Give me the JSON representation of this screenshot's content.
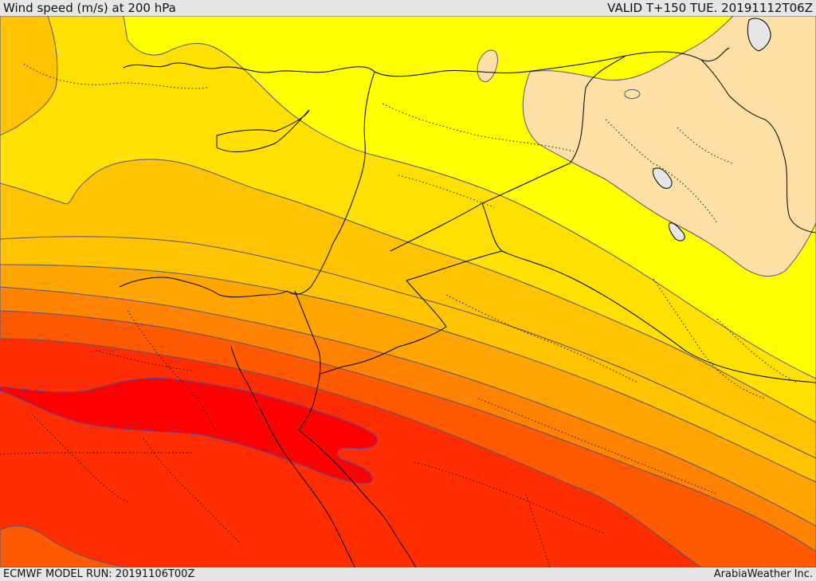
{
  "header": {
    "title": "Wind speed (m/s) at 200 hPa",
    "valid": "VALID T+150 TUE. 20191112T06Z"
  },
  "footer": {
    "model_run": "ECMWF MODEL RUN: 20191106T00Z",
    "credit": "ArabiaWeather Inc."
  },
  "colors": {
    "band_1": "#fde0a6",
    "band_2": "#ffff00",
    "band_3": "#ffe000",
    "band_4": "#ffc300",
    "band_5": "#ffa500",
    "band_6": "#ff8200",
    "band_7": "#ff5a00",
    "band_8": "#ff2d00",
    "band_9": "#ff0000",
    "contour": "#555577",
    "border": "#000000",
    "water": "#e6e6e6"
  }
}
